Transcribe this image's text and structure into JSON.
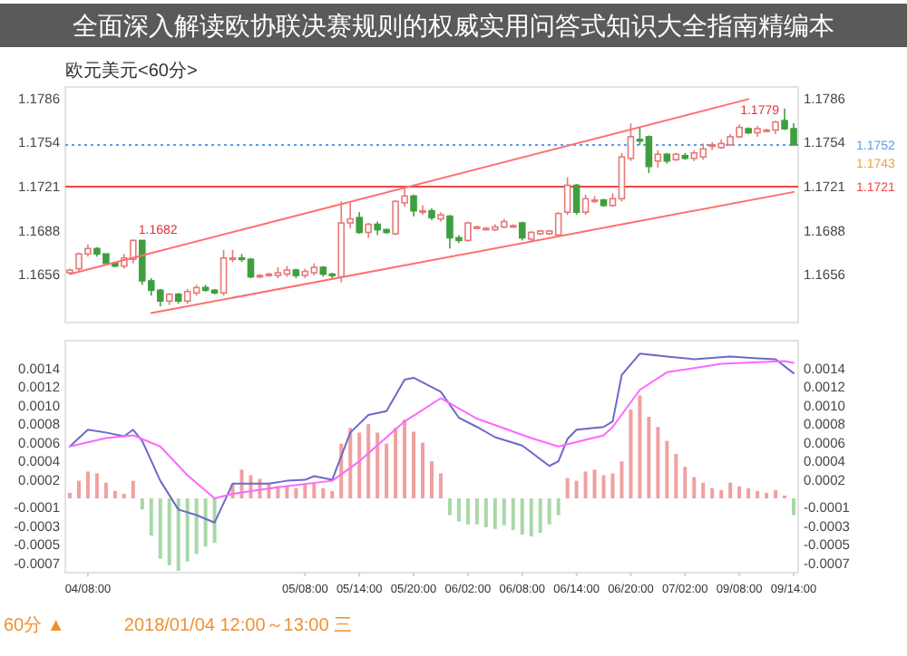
{
  "chart_data": [
    {
      "type": "candlestick",
      "title": "全面深入解读欧协联决赛规则的权威实用问答式知识大全指南精编本",
      "subtitle": "欧元美元<60分>",
      "ohlc": [
        [
          1.1657,
          1.166,
          1.1656,
          1.1659
        ],
        [
          1.166,
          1.1672,
          1.1658,
          1.1671
        ],
        [
          1.1671,
          1.1678,
          1.1669,
          1.1675
        ],
        [
          1.1675,
          1.1676,
          1.1669,
          1.1671
        ],
        [
          1.1671,
          1.1671,
          1.1663,
          1.1664
        ],
        [
          1.1664,
          1.1665,
          1.1661,
          1.1662
        ],
        [
          1.1662,
          1.1671,
          1.166,
          1.1668
        ],
        [
          1.1667,
          1.1682,
          1.1664,
          1.1681
        ],
        [
          1.1681,
          1.1681,
          1.1648,
          1.1651
        ],
        [
          1.1651,
          1.1653,
          1.164,
          1.1644
        ],
        [
          1.1644,
          1.1645,
          1.1632,
          1.1636
        ],
        [
          1.1636,
          1.1642,
          1.1633,
          1.1641
        ],
        [
          1.1641,
          1.1642,
          1.1634,
          1.1636
        ],
        [
          1.1636,
          1.1645,
          1.1634,
          1.1643
        ],
        [
          1.1642,
          1.1648,
          1.164,
          1.1646
        ],
        [
          1.1646,
          1.1648,
          1.1643,
          1.1644
        ],
        [
          1.1644,
          1.1645,
          1.1641,
          1.1642
        ],
        [
          1.1642,
          1.1674,
          1.164,
          1.1668
        ],
        [
          1.1667,
          1.1674,
          1.1665,
          1.1668
        ],
        [
          1.1668,
          1.1671,
          1.1665,
          1.1667
        ],
        [
          1.1667,
          1.1668,
          1.1653,
          1.1654
        ],
        [
          1.1655,
          1.1656,
          1.1653,
          1.1655
        ],
        [
          1.1655,
          1.1657,
          1.1654,
          1.1656
        ],
        [
          1.1655,
          1.1661,
          1.1653,
          1.1657
        ],
        [
          1.1656,
          1.1662,
          1.1654,
          1.1659
        ],
        [
          1.1659,
          1.166,
          1.1653,
          1.1655
        ],
        [
          1.1655,
          1.166,
          1.1653,
          1.1658
        ],
        [
          1.1657,
          1.1664,
          1.1655,
          1.1661
        ],
        [
          1.1661,
          1.1662,
          1.1654,
          1.1656
        ],
        [
          1.1656,
          1.1657,
          1.1653,
          1.1655
        ],
        [
          1.1654,
          1.171,
          1.165,
          1.1694
        ],
        [
          1.1694,
          1.1709,
          1.169,
          1.1697
        ],
        [
          1.1698,
          1.1702,
          1.1686,
          1.1687
        ],
        [
          1.1687,
          1.1694,
          1.1683,
          1.1693
        ],
        [
          1.1693,
          1.1695,
          1.1685,
          1.1689
        ],
        [
          1.1689,
          1.169,
          1.1686,
          1.1687
        ],
        [
          1.1686,
          1.1711,
          1.1685,
          1.171
        ],
        [
          1.1709,
          1.1721,
          1.1706,
          1.1714
        ],
        [
          1.1714,
          1.1715,
          1.1699,
          1.1703
        ],
        [
          1.1703,
          1.1707,
          1.17,
          1.1703
        ],
        [
          1.1703,
          1.1705,
          1.1696,
          1.1698
        ],
        [
          1.1697,
          1.1702,
          1.1695,
          1.17
        ],
        [
          1.1699,
          1.17,
          1.1675,
          1.1683
        ],
        [
          1.1683,
          1.1685,
          1.1679,
          1.1681
        ],
        [
          1.1681,
          1.1695,
          1.168,
          1.1694
        ],
        [
          1.1691,
          1.1692,
          1.169,
          1.1691
        ],
        [
          1.169,
          1.1691,
          1.1689,
          1.169
        ],
        [
          1.1689,
          1.1693,
          1.1688,
          1.1691
        ],
        [
          1.1691,
          1.1697,
          1.169,
          1.1695
        ],
        [
          1.1692,
          1.1693,
          1.1691,
          1.1692
        ],
        [
          1.1694,
          1.1695,
          1.1681,
          1.1683
        ],
        [
          1.1682,
          1.1688,
          1.168,
          1.1687
        ],
        [
          1.1686,
          1.1689,
          1.1685,
          1.1688
        ],
        [
          1.1686,
          1.1689,
          1.1685,
          1.1688
        ],
        [
          1.1685,
          1.1702,
          1.1684,
          1.1701
        ],
        [
          1.1702,
          1.1728,
          1.17,
          1.1722
        ],
        [
          1.1722,
          1.1723,
          1.17,
          1.1702
        ],
        [
          1.1702,
          1.1715,
          1.17,
          1.1712
        ],
        [
          1.1711,
          1.1714,
          1.1709,
          1.1711
        ],
        [
          1.1711,
          1.1712,
          1.1706,
          1.1707
        ],
        [
          1.1707,
          1.1716,
          1.1706,
          1.1712
        ],
        [
          1.1712,
          1.1746,
          1.171,
          1.1743
        ],
        [
          1.1742,
          1.1768,
          1.174,
          1.1758
        ],
        [
          1.1756,
          1.1765,
          1.1752,
          1.1755
        ],
        [
          1.1758,
          1.1759,
          1.1731,
          1.1736
        ],
        [
          1.174,
          1.1748,
          1.1735,
          1.1745
        ],
        [
          1.1745,
          1.1746,
          1.1738,
          1.174
        ],
        [
          1.1741,
          1.1746,
          1.174,
          1.1745
        ],
        [
          1.1744,
          1.1746,
          1.1741,
          1.1742
        ],
        [
          1.1742,
          1.1748,
          1.174,
          1.1746
        ],
        [
          1.1743,
          1.1753,
          1.1741,
          1.1749
        ],
        [
          1.1752,
          1.1754,
          1.1748,
          1.1752
        ],
        [
          1.175,
          1.1756,
          1.1749,
          1.1753
        ],
        [
          1.1752,
          1.176,
          1.1751,
          1.1758
        ],
        [
          1.1758,
          1.1767,
          1.1757,
          1.1765
        ],
        [
          1.1764,
          1.1765,
          1.176,
          1.1761
        ],
        [
          1.1761,
          1.1766,
          1.1758,
          1.1764
        ],
        [
          1.1763,
          1.1764,
          1.1762,
          1.1763
        ],
        [
          1.1763,
          1.177,
          1.176,
          1.1769
        ],
        [
          1.177,
          1.1779,
          1.1763,
          1.1764
        ],
        [
          1.1764,
          1.1768,
          1.1751,
          1.1752
        ]
      ],
      "series": [
        {
          "type": "line",
          "color": "#ff6f6f",
          "values": [
            1.1656,
            null,
            null,
            null,
            null,
            null,
            null,
            null,
            null,
            null,
            null,
            null,
            null,
            null,
            null,
            null,
            null,
            null,
            null,
            null,
            null,
            null,
            null,
            null,
            null,
            null,
            null,
            null,
            null,
            null,
            null,
            null,
            null,
            null,
            null,
            null,
            null,
            null,
            null,
            null,
            null,
            null,
            null,
            null,
            null,
            null,
            null,
            null,
            null,
            null,
            null,
            null,
            null,
            null,
            null,
            null,
            null,
            null,
            null,
            null,
            null,
            null,
            null,
            null,
            null,
            null,
            null,
            null,
            null,
            null,
            null,
            null,
            null,
            null,
            null,
            1.1786,
            null,
            null,
            null,
            null,
            null
          ]
        },
        {
          "type": "line",
          "color": "#ff6f6f",
          "values": [
            null,
            null,
            null,
            null,
            null,
            null,
            null,
            null,
            null,
            1.1627,
            null,
            null,
            null,
            null,
            null,
            null,
            null,
            null,
            null,
            null,
            null,
            null,
            null,
            null,
            null,
            null,
            null,
            null,
            null,
            null,
            null,
            null,
            null,
            null,
            null,
            null,
            null,
            null,
            null,
            null,
            null,
            null,
            null,
            null,
            null,
            null,
            null,
            null,
            null,
            null,
            null,
            null,
            null,
            null,
            null,
            null,
            null,
            null,
            null,
            null,
            null,
            null,
            null,
            null,
            null,
            null,
            null,
            null,
            null,
            null,
            null,
            null,
            null,
            null,
            null,
            null,
            null,
            null,
            null,
            null,
            1.1717
          ]
        }
      ],
      "ylim": [
        1.162,
        1.1795
      ],
      "yticks": [
        1.1656,
        1.1688,
        1.1721,
        1.1754,
        1.1786
      ],
      "y2lim": [
        1.162,
        1.1795
      ],
      "y2ticks": [
        1.1656,
        1.1688,
        1.1721,
        1.1754,
        1.1786
      ],
      "ref_lines": [
        {
          "axis": "y2",
          "value": 1.1752,
          "label": "1.1752",
          "color": "#5b9be6",
          "line_style": "dotted"
        },
        {
          "axis": "y2",
          "value": 1.1721,
          "label": "1.1721",
          "color": "#ee4444",
          "line_style": "solid"
        }
      ],
      "annotations": [
        "1.1682",
        "1.1779",
        "1.1743"
      ],
      "tick_labels": "y"
    },
    {
      "type": "bar",
      "categories": [
        null,
        null,
        "04/08:00",
        null,
        null,
        null,
        null,
        null,
        null,
        null,
        null,
        null,
        null,
        null,
        null,
        null,
        null,
        null,
        null,
        null,
        null,
        null,
        null,
        null,
        null,
        null,
        "05/08:00",
        null,
        null,
        null,
        null,
        null,
        "05/14:00",
        null,
        null,
        null,
        null,
        null,
        "05/20:00",
        null,
        null,
        null,
        null,
        null,
        "06/02:00",
        null,
        null,
        null,
        null,
        null,
        "06/08:00",
        null,
        null,
        null,
        null,
        null,
        "06/14:00",
        null,
        null,
        null,
        null,
        null,
        "06/20:00",
        null,
        null,
        null,
        null,
        null,
        "07/02:00",
        null,
        null,
        null,
        null,
        null,
        "09/08:00",
        null,
        null,
        null,
        null,
        null,
        "09/14:00"
      ],
      "values": [
        6e-05,
        0.00019,
        0.00029,
        0.00027,
        0.00017,
        8e-05,
        5e-05,
        0.00019,
        -0.00012,
        -0.0004,
        -0.00065,
        -0.00072,
        -0.00078,
        -0.00068,
        -0.0006,
        -0.00052,
        -0.00048,
        null,
        0.00016,
        0.00031,
        0.00025,
        0.00021,
        0.00016,
        0.00013,
        0.00014,
        0.00011,
        0.00016,
        0.00016,
        0.00011,
        8e-05,
        0.00059,
        0.00076,
        0.00071,
        0.0008,
        0.00071,
        0.00059,
        0.00076,
        0.00085,
        0.00072,
        0.0006,
        0.0004,
        0.00027,
        -0.00018,
        -0.00025,
        -0.00028,
        -0.00028,
        -0.00031,
        -0.00033,
        -0.00029,
        -0.00034,
        -0.00039,
        -0.00041,
        -0.00037,
        -0.00028,
        -0.00018,
        0.00022,
        0.00019,
        0.00029,
        0.00031,
        0.00025,
        0.00027,
        0.0004,
        0.00096,
        0.00111,
        0.00088,
        0.00077,
        0.00062,
        0.00048,
        0.00034,
        0.00023,
        0.00017,
        0.00011,
        9e-05,
        0.00017,
        0.00013,
        0.00011,
        8e-05,
        6e-05,
        9e-05,
        3e-05,
        -0.00018
      ],
      "colors": [
        "#f0a0a0",
        "#f0a0a0",
        "#f0a0a0",
        "#f0a0a0",
        "#f0a0a0",
        "#f0a0a0",
        "#f0a0a0",
        "#f0a0a0",
        "#a8d8a8",
        "#a8d8a8",
        "#a8d8a8",
        "#a8d8a8",
        "#a8d8a8",
        "#a8d8a8",
        "#a8d8a8",
        "#a8d8a8",
        "#a8d8a8",
        null,
        "#f0a0a0",
        "#f0a0a0",
        "#f0a0a0",
        "#f0a0a0",
        "#f0a0a0",
        "#f0a0a0",
        "#f0a0a0",
        "#f0a0a0",
        "#f0a0a0",
        "#f0a0a0",
        "#f0a0a0",
        "#f0a0a0",
        "#f0a0a0",
        "#f0a0a0",
        "#f0a0a0",
        "#f0a0a0",
        "#f0a0a0",
        "#f0a0a0",
        "#f0a0a0",
        "#f0a0a0",
        "#f0a0a0",
        "#f0a0a0",
        "#f0a0a0",
        "#f0a0a0",
        "#a8d8a8",
        "#a8d8a8",
        "#a8d8a8",
        "#a8d8a8",
        "#a8d8a8",
        "#a8d8a8",
        "#a8d8a8",
        "#a8d8a8",
        "#a8d8a8",
        "#a8d8a8",
        "#a8d8a8",
        "#a8d8a8",
        "#a8d8a8",
        "#f0a0a0",
        "#f0a0a0",
        "#f0a0a0",
        "#f0a0a0",
        "#f0a0a0",
        "#f0a0a0",
        "#f0a0a0",
        "#f0a0a0",
        "#f0a0a0",
        "#f0a0a0",
        "#f0a0a0",
        "#f0a0a0",
        "#f0a0a0",
        "#f0a0a0",
        "#f0a0a0",
        "#f0a0a0",
        "#f0a0a0",
        "#f0a0a0",
        "#f0a0a0",
        "#f0a0a0",
        "#f0a0a0",
        "#f0a0a0",
        "#f0a0a0",
        "#f0a0a0",
        "#f0a0a0",
        "#a8d8a8"
      ],
      "series": [
        {
          "type": "line",
          "color": "#6a6ac8",
          "values": [
            0.00056,
            null,
            0.00074,
            null,
            0.00071,
            null,
            0.00067,
            0.00074,
            0.00062,
            null,
            0.00019,
            null,
            -0.00012,
            null,
            -0.00018,
            null,
            -0.00026,
            null,
            0.00016,
            null,
            0.00016,
            null,
            0.00016,
            null,
            0.00019,
            null,
            0.0002,
            0.00024,
            null,
            0.0002,
            null,
            0.00071,
            null,
            0.0009,
            null,
            0.00094,
            null,
            0.00128,
            0.0013,
            null,
            null,
            0.00115,
            null,
            0.00087,
            null,
            0.00077,
            null,
            0.00066,
            null,
            null,
            0.00057,
            null,
            null,
            0.00035,
            0.0004,
            0.00064,
            0.00074,
            null,
            null,
            0.00077,
            0.00083,
            0.00133,
            null,
            0.00156,
            null,
            null,
            0.00153,
            null,
            null,
            0.0015,
            null,
            null,
            null,
            0.00153,
            null,
            null,
            0.00151,
            null,
            0.0015,
            null,
            0.00135
          ]
        },
        {
          "type": "line",
          "color": "#ff66ff",
          "values": [
            0.00056,
            null,
            null,
            null,
            0.00065,
            null,
            null,
            0.00068,
            null,
            null,
            0.00056,
            null,
            null,
            0.00025,
            null,
            null,
            0,
            null,
            5e-05,
            null,
            null,
            null,
            null,
            0.00012,
            null,
            null,
            null,
            null,
            null,
            0.00019,
            null,
            null,
            0.0004,
            null,
            null,
            null,
            null,
            0.00083,
            null,
            null,
            null,
            0.00108,
            null,
            null,
            null,
            0.00086,
            null,
            null,
            null,
            null,
            null,
            0.00065,
            null,
            null,
            0.00056,
            null,
            null,
            null,
            null,
            0.00068,
            0.00077,
            null,
            null,
            0.00117,
            null,
            null,
            0.00136,
            null,
            null,
            null,
            null,
            null,
            0.00145,
            null,
            null,
            null,
            null,
            null,
            null,
            0.00148,
            0.00146
          ]
        }
      ],
      "ylim": [
        -0.0008,
        0.0017
      ],
      "yticks": [
        0.0014,
        0.0012,
        {
          "value": 0.001,
          "label": "0.0010"
        },
        0.0008,
        0.0006,
        0.0004,
        0.0002,
        -0.0001,
        -0.0003,
        -0.0005,
        -0.0007
      ],
      "y2lim": [
        -0.0008,
        0.0017
      ],
      "y2ticks": [
        0.0014,
        0.0012,
        {
          "value": 0.001,
          "label": "0.0010"
        },
        0.0008,
        0.0006,
        0.0004,
        0.0002,
        -0.0001,
        -0.0003,
        -0.0005,
        -0.0007
      ],
      "annotations": [
        "60分 ▲",
        "2018/01/04 12:00～13:00 三"
      ]
    }
  ]
}
